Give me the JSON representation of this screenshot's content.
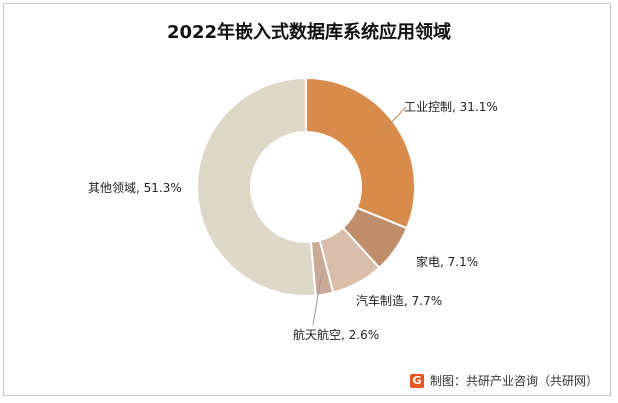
{
  "chart_data": {
    "type": "pie",
    "title": "2022年嵌入式数据库系统应用领域",
    "slices": [
      {
        "label": "工业控制, 31.1%",
        "value": 31.1,
        "color": "#d98b4c"
      },
      {
        "label": "家电, 7.1%",
        "value": 7.1,
        "color": "#bf8f6c"
      },
      {
        "label": "汽车制造, 7.7%",
        "value": 7.7,
        "color": "#d8bdaa"
      },
      {
        "label": "航天航空, 2.6%",
        "value": 2.6,
        "color": "#c9a898"
      },
      {
        "label": "其他领域, 51.3%",
        "value": 51.3,
        "color": "#ddd8c8"
      }
    ]
  },
  "footer": {
    "logo_text": "G",
    "source": "制图：共研产业咨询（共研网）"
  }
}
